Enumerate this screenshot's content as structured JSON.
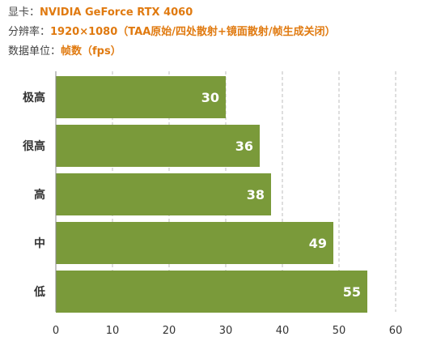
{
  "header": {
    "gpu_label": "显卡：",
    "gpu_value": "NVIDIA GeForce RTX 4060",
    "res_label": "分辨率：",
    "res_value": "1920×1080（TAA原始/四处散射+镜面散射/帧生成关闭）",
    "unit_label": "数据单位：",
    "unit_value": "帧数（fps）"
  },
  "colors": {
    "bar": "#7a9a3a",
    "accent": "#e07a10",
    "grid": "#bdbdbd",
    "axis_text": "#333333",
    "bar_label": "#ffffff"
  },
  "chart_data": {
    "type": "bar",
    "orientation": "horizontal",
    "categories": [
      "极高",
      "很高",
      "高",
      "中",
      "低"
    ],
    "values": [
      30,
      36,
      38,
      49,
      55
    ],
    "title": "",
    "xlabel": "",
    "ylabel": "",
    "xlim": [
      0,
      60
    ],
    "xticks": [
      0,
      10,
      20,
      30,
      40,
      50,
      60
    ],
    "grid": "vertical dashed",
    "legend": "none",
    "data_labels": true
  }
}
